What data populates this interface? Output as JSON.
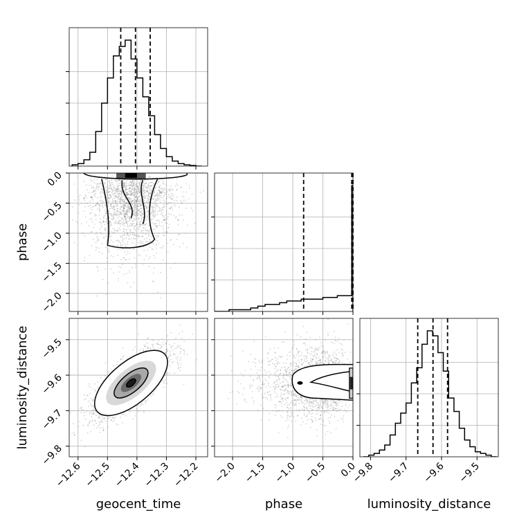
{
  "chart_data": {
    "type": "corner",
    "parameters": [
      "geocent_time",
      "phase",
      "luminosity_distance"
    ],
    "axes": {
      "geocent_time": {
        "label": "geocent_time",
        "range": [
          -12.63,
          -12.16
        ],
        "ticks": [
          -12.6,
          -12.5,
          -12.4,
          -12.3,
          -12.2
        ],
        "tick_labels": [
          "−12.6",
          "−12.5",
          "−12.4",
          "−12.3",
          "−12.2"
        ]
      },
      "phase": {
        "label": "phase",
        "range": [
          -2.3,
          0.0
        ],
        "ticks": [
          -2.0,
          -1.5,
          -1.0,
          -0.5,
          0.0
        ],
        "tick_labels": [
          "−2.0",
          "−1.5",
          "−1.0",
          "−0.5",
          "0.0"
        ]
      },
      "luminosity_distance": {
        "label": "luminosity_distance",
        "range": [
          -9.83,
          -9.44
        ],
        "ticks": [
          -9.8,
          -9.7,
          -9.6,
          -9.5
        ],
        "tick_labels": [
          "−9.8",
          "−9.7",
          "−9.6",
          "−9.5"
        ]
      }
    },
    "histograms": {
      "geocent_time": {
        "bin_edges": [
          -12.62,
          -12.6,
          -12.58,
          -12.56,
          -12.54,
          -12.52,
          -12.5,
          -12.48,
          -12.46,
          -12.44,
          -12.42,
          -12.4,
          -12.38,
          -12.36,
          -12.34,
          -12.32,
          -12.3,
          -12.28,
          -12.26,
          -12.24,
          -12.22,
          -12.2,
          -12.18
        ],
        "counts": [
          2,
          4,
          10,
          22,
          55,
          100,
          140,
          175,
          190,
          200,
          170,
          140,
          110,
          80,
          50,
          28,
          15,
          8,
          4,
          2,
          1,
          0
        ],
        "quantiles": [
          -12.455,
          -12.405,
          -12.355
        ]
      },
      "phase": {
        "bin_edges": [
          -2.3,
          -2.18,
          -2.06,
          -1.94,
          -1.82,
          -1.7,
          -1.58,
          -1.46,
          -1.34,
          -1.22,
          -1.1,
          -0.98,
          -0.86,
          -0.74,
          -0.62,
          -0.5,
          -0.38,
          -0.26,
          -0.14,
          -0.02,
          0.0
        ],
        "counts": [
          0,
          0,
          1,
          1,
          1,
          2,
          3,
          4,
          4,
          5,
          6,
          6,
          7,
          7,
          7,
          8,
          8,
          9,
          9,
          72
        ],
        "quantiles": [
          -0.82,
          -0.02,
          0.0
        ]
      },
      "luminosity_distance": {
        "bin_edges": [
          -9.82,
          -9.805,
          -9.79,
          -9.775,
          -9.76,
          -9.745,
          -9.73,
          -9.715,
          -9.7,
          -9.685,
          -9.67,
          -9.655,
          -9.64,
          -9.625,
          -9.61,
          -9.595,
          -9.58,
          -9.565,
          -9.55,
          -9.535,
          -9.52,
          -9.505,
          -9.49,
          -9.475,
          -9.46,
          -9.445
        ],
        "counts": [
          0,
          1,
          2,
          4,
          7,
          13,
          20,
          26,
          32,
          44,
          53,
          67,
          75,
          72,
          62,
          51,
          35,
          27,
          17,
          10,
          6,
          3,
          2,
          1,
          0
        ],
        "quantiles": [
          -9.667,
          -9.624,
          -9.583
        ]
      }
    },
    "joint": [
      {
        "x": "geocent_time",
        "y": "phase",
        "x_center": -12.42,
        "x_spread": 0.08,
        "y_mode": "concentrated near 0.0"
      },
      {
        "x": "geocent_time",
        "y": "luminosity_distance",
        "x_center": -12.42,
        "y_center": -9.62,
        "correlation": 0.75
      },
      {
        "x": "phase",
        "y": "luminosity_distance",
        "x_mode": "concentrated near 0.0",
        "y_center": -9.62
      }
    ],
    "style": {
      "line_color": "#000000",
      "scatter_color": "#808080",
      "grid": true,
      "quantile_linestyle": "dashed"
    }
  }
}
